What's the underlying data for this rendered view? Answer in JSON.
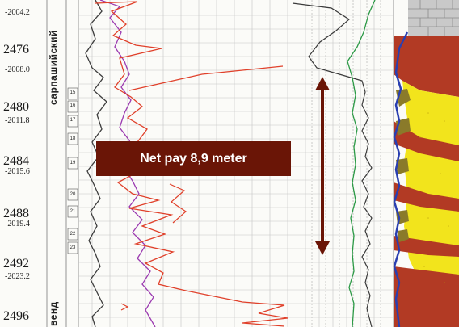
{
  "callout": {
    "text": "Net pay 8,9 meter"
  },
  "depth_track": {
    "md_labels": [
      "2476",
      "2480",
      "2484",
      "2488",
      "2492",
      "2496"
    ],
    "tvd_labels": [
      "-2004.2",
      "-2008.0",
      "-2011.8",
      "-2015.6",
      "-2019.4",
      "-2023.2"
    ]
  },
  "formations": {
    "upper": "сарпашийский",
    "lower": "венд"
  },
  "sample_numbers": [
    "15",
    "16",
    "17",
    "18",
    "19",
    "20",
    "21",
    "22",
    "23"
  ],
  "colors": {
    "callout": "#6a1506",
    "arrow": "#6a1506",
    "sand": "#f2e41c",
    "shale": "#b23a24",
    "limestone": "#c9c9c9",
    "base": "#2a3fb0"
  }
}
